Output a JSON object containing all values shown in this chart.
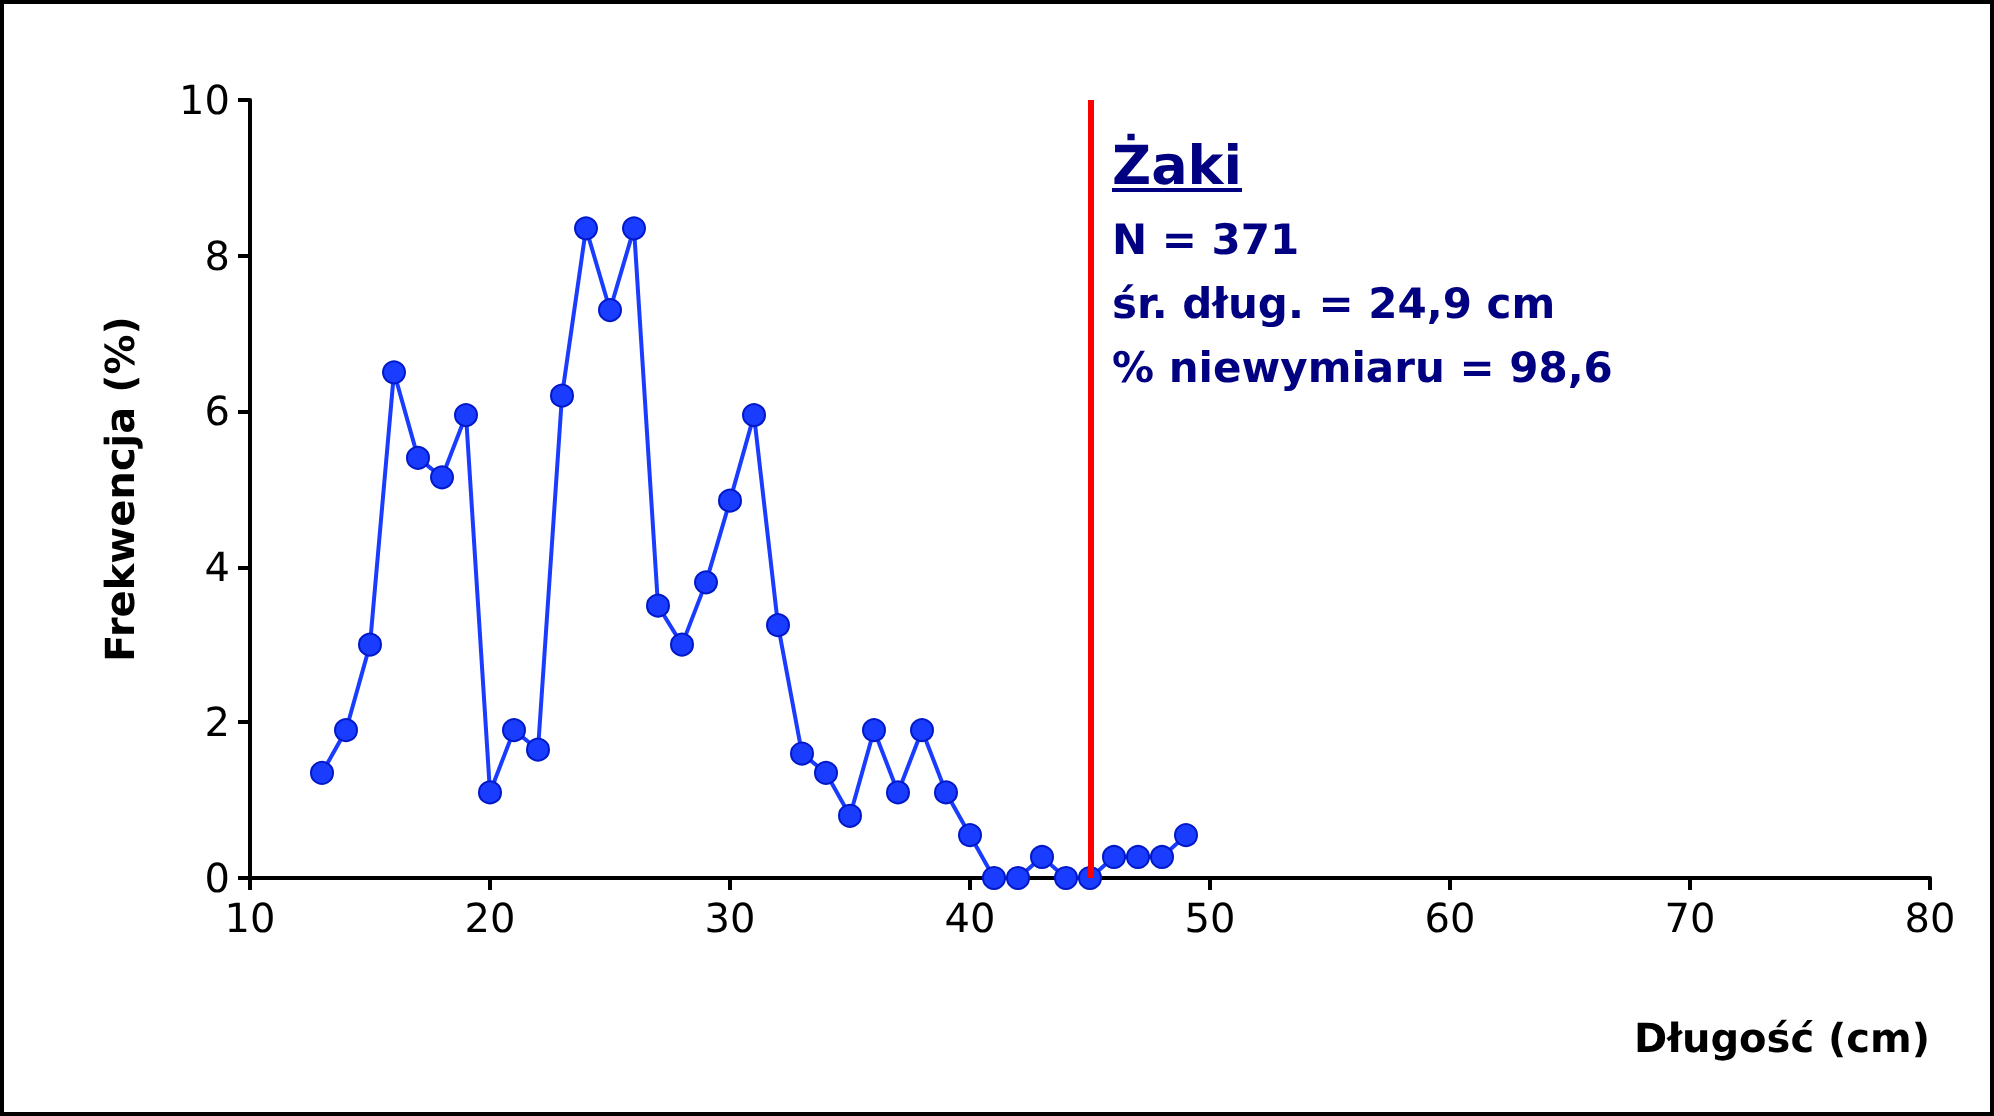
{
  "chart_data": {
    "type": "line",
    "xlabel": "Długość (cm)",
    "ylabel": "Frekwencja (%)",
    "x": [
      13,
      14,
      15,
      16,
      17,
      18,
      19,
      20,
      21,
      22,
      23,
      24,
      25,
      26,
      27,
      28,
      29,
      30,
      31,
      32,
      33,
      34,
      35,
      36,
      37,
      38,
      39,
      40,
      41,
      42,
      43,
      44,
      45,
      46,
      47,
      48,
      49
    ],
    "series": [
      {
        "color": "#1a3cff",
        "values": [
          1.35,
          1.9,
          3.0,
          6.5,
          5.4,
          5.15,
          5.95,
          1.1,
          1.9,
          1.65,
          6.2,
          8.35,
          7.3,
          8.35,
          3.5,
          3.0,
          3.8,
          4.85,
          5.95,
          3.25,
          1.6,
          1.35,
          0.8,
          1.9,
          1.1,
          1.9,
          1.1,
          0.55,
          0,
          0,
          0.27,
          0,
          0,
          0.27,
          0.27,
          0.27,
          0.55
        ]
      }
    ],
    "xlim": [
      10,
      80
    ],
    "xticks": [
      10,
      20,
      30,
      40,
      50,
      60,
      70,
      80
    ],
    "ylim": [
      0,
      10
    ],
    "yticks": [
      0,
      2,
      4,
      6,
      8,
      10
    ],
    "grid": false,
    "marker": "circle",
    "line_style": "solid",
    "ref_lines": [
      {
        "axis": "x",
        "value": 45,
        "color": "#ff0000"
      }
    ],
    "annotations": [
      "Żaki",
      "N = 371",
      "śr. dług. = 24,9 cm",
      "% niewymiaru = 98,6"
    ]
  }
}
